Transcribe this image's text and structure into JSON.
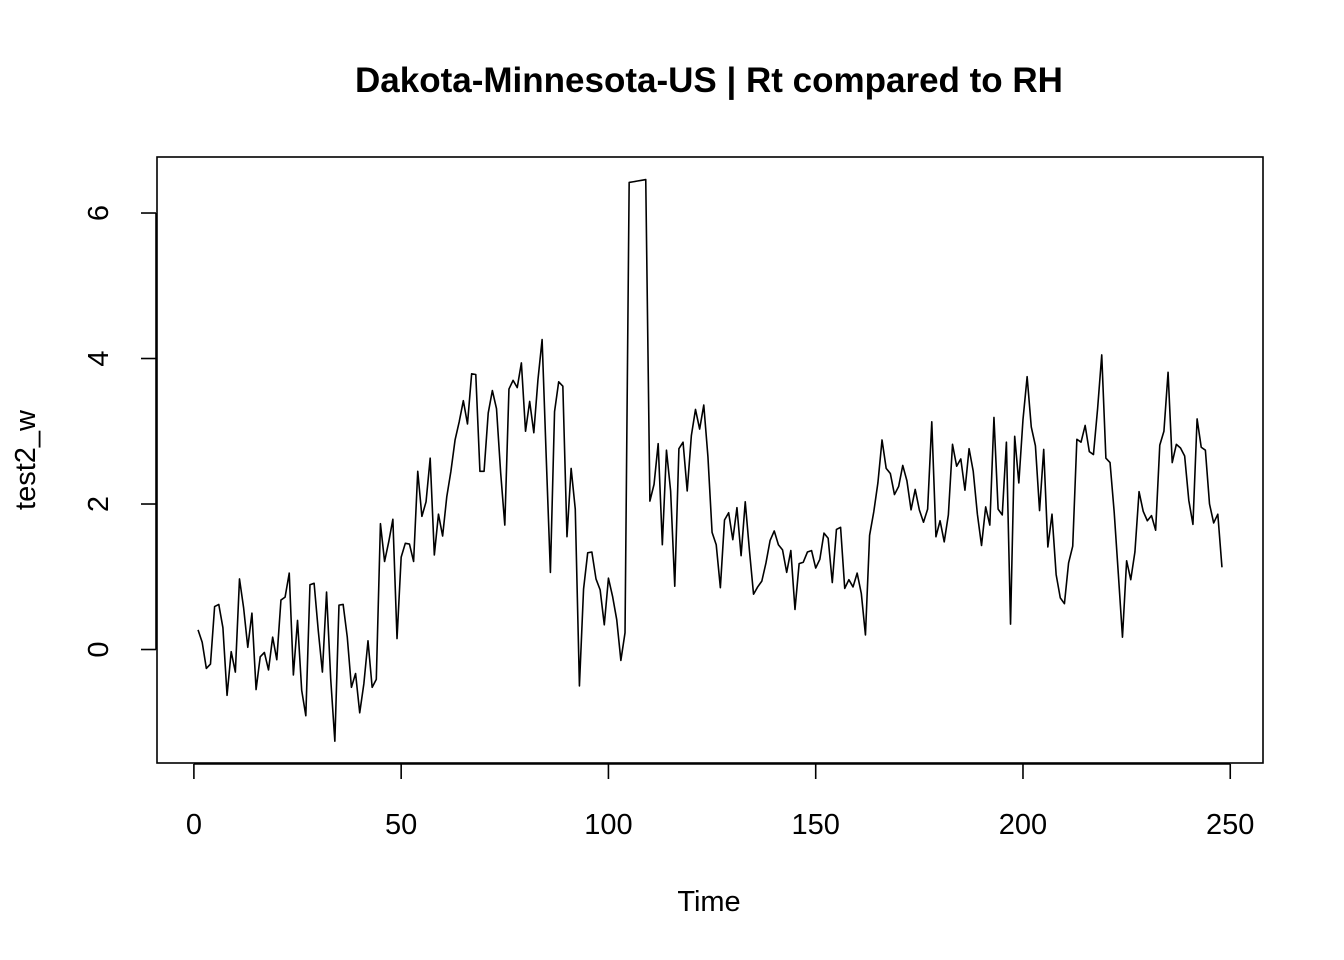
{
  "chart_data": {
    "type": "line",
    "title": "Dakota-Minnesota-US | Rt compared to RH",
    "xlabel": "Time",
    "ylabel": "test2_w",
    "xlim": [
      -8.9,
      257.9
    ],
    "ylim": [
      -1.56,
      6.77
    ],
    "x_ticks": [
      0,
      50,
      100,
      150,
      200,
      250
    ],
    "y_ticks": [
      0,
      2,
      4,
      6
    ],
    "grid": false,
    "legend": "none",
    "line_color": "#000000",
    "x_start": 1,
    "values": [
      0.27,
      0.1,
      -0.26,
      -0.2,
      0.59,
      0.62,
      0.3,
      -0.63,
      -0.03,
      -0.31,
      0.97,
      0.57,
      0.03,
      0.5,
      -0.55,
      -0.1,
      -0.04,
      -0.28,
      0.17,
      -0.14,
      0.68,
      0.72,
      1.05,
      -0.35,
      0.4,
      -0.56,
      -0.91,
      0.89,
      0.91,
      0.26,
      -0.31,
      0.79,
      -0.4,
      -1.26,
      0.61,
      0.62,
      0.17,
      -0.52,
      -0.33,
      -0.87,
      -0.47,
      0.12,
      -0.52,
      -0.41,
      1.73,
      1.21,
      1.48,
      1.79,
      0.15,
      1.27,
      1.46,
      1.45,
      1.21,
      2.45,
      1.83,
      2.03,
      2.63,
      1.3,
      1.86,
      1.56,
      2.1,
      2.45,
      2.88,
      3.13,
      3.42,
      3.1,
      3.79,
      3.78,
      2.45,
      2.45,
      3.25,
      3.56,
      3.31,
      2.43,
      1.71,
      3.58,
      3.7,
      3.6,
      3.94,
      3.0,
      3.41,
      2.98,
      3.71,
      4.26,
      2.63,
      1.06,
      3.27,
      3.68,
      3.62,
      1.55,
      2.49,
      1.93,
      -0.5,
      0.83,
      1.33,
      1.34,
      0.97,
      0.82,
      0.34,
      0.98,
      0.73,
      0.41,
      -0.15,
      0.23,
      6.42,
      6.43,
      6.44,
      6.45,
      6.46,
      2.04,
      2.27,
      2.83,
      1.44,
      2.74,
      2.18,
      0.87,
      2.76,
      2.85,
      2.18,
      2.94,
      3.3,
      3.03,
      3.36,
      2.65,
      1.61,
      1.44,
      0.85,
      1.78,
      1.88,
      1.51,
      1.95,
      1.29,
      2.03,
      1.37,
      0.76,
      0.86,
      0.94,
      1.19,
      1.5,
      1.63,
      1.44,
      1.37,
      1.06,
      1.36,
      0.55,
      1.18,
      1.2,
      1.34,
      1.36,
      1.12,
      1.24,
      1.6,
      1.53,
      0.92,
      1.65,
      1.68,
      0.84,
      0.96,
      0.86,
      1.05,
      0.77,
      0.2,
      1.57,
      1.89,
      2.29,
      2.88,
      2.49,
      2.42,
      2.13,
      2.24,
      2.53,
      2.32,
      1.92,
      2.2,
      1.92,
      1.75,
      1.93,
      3.13,
      1.55,
      1.77,
      1.48,
      1.85,
      2.82,
      2.52,
      2.62,
      2.19,
      2.76,
      2.45,
      1.86,
      1.43,
      1.96,
      1.71,
      3.19,
      1.93,
      1.85,
      2.85,
      0.35,
      2.93,
      2.29,
      3.16,
      3.75,
      3.06,
      2.8,
      1.91,
      2.75,
      1.41,
      1.86,
      1.03,
      0.71,
      0.63,
      1.19,
      1.42,
      2.89,
      2.85,
      3.08,
      2.72,
      2.68,
      3.31,
      4.05,
      2.63,
      2.57,
      1.89,
      1.04,
      0.17,
      1.22,
      0.96,
      1.34,
      2.17,
      1.9,
      1.77,
      1.84,
      1.64,
      2.81,
      3.0,
      3.81,
      2.57,
      2.82,
      2.77,
      2.66,
      2.05,
      1.72,
      3.17,
      2.78,
      2.74,
      2.0,
      1.74,
      1.86,
      1.13
    ]
  }
}
